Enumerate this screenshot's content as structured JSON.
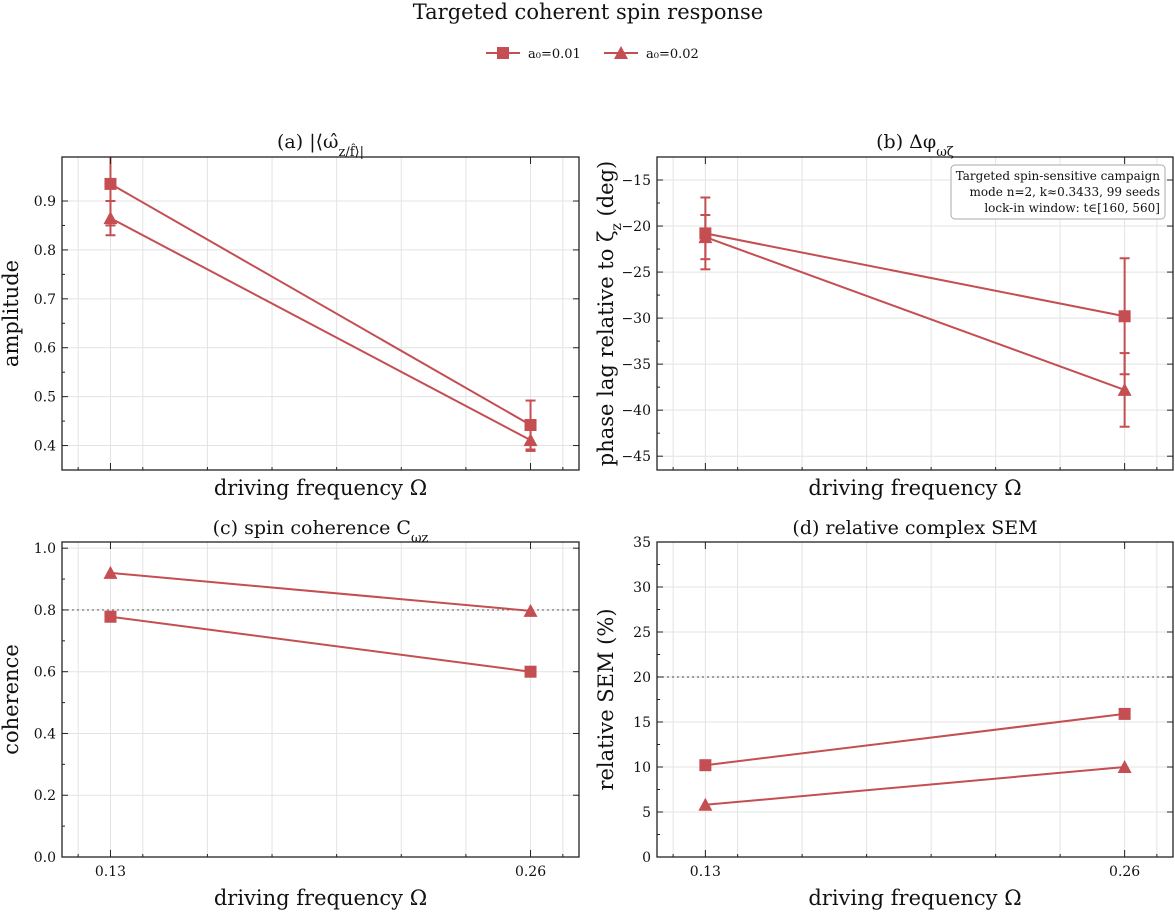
{
  "figure": {
    "suptitle": "Targeted coherent spin response",
    "legend": {
      "placement": "top-center",
      "entries": [
        {
          "label": "a₀=0.01",
          "marker": "square"
        },
        {
          "label": "a₀=0.02",
          "marker": "triangle"
        }
      ]
    },
    "color": "#c44e52"
  },
  "chart_data": [
    {
      "panel": "a",
      "type": "line",
      "title": "(a) |⟨ω̂_z/f̂⟩|",
      "xlabel": "driving frequency Ω",
      "ylabel": "amplitude",
      "xlim": [
        0.115,
        0.275
      ],
      "ylim": [
        0.35,
        0.99
      ],
      "yticks": [
        0.4,
        0.5,
        0.6,
        0.7,
        0.8,
        0.9
      ],
      "show_xticklabels": false,
      "x": [
        0.13,
        0.26
      ],
      "series": [
        {
          "name": "a₀=0.01",
          "marker": "square",
          "values": [
            0.935,
            0.442
          ],
          "err": [
            0.085,
            0.05
          ]
        },
        {
          "name": "a₀=0.02",
          "marker": "triangle",
          "values": [
            0.865,
            0.411
          ],
          "err": [
            0.035,
            0.022
          ]
        }
      ]
    },
    {
      "panel": "b",
      "type": "line",
      "title": "(b) Δφ_ωζ",
      "xlabel": "driving frequency Ω",
      "ylabel": "phase lag relative to ζ_z (deg)",
      "xlim": [
        0.115,
        0.275
      ],
      "ylim": [
        -46.5,
        -12.5
      ],
      "yticks": [
        -45,
        -40,
        -35,
        -30,
        -25,
        -20,
        -15
      ],
      "show_xticklabels": false,
      "annotation": {
        "placement": "top-right",
        "lines": [
          "Targeted spin-sensitive campaign",
          "mode n=2, k≈0.3433, 99 seeds",
          "lock-in window: t∈[160, 560]"
        ]
      },
      "x": [
        0.13,
        0.26
      ],
      "series": [
        {
          "name": "a₀=0.01",
          "marker": "square",
          "values": [
            -20.8,
            -29.8
          ],
          "err": [
            3.9,
            6.3
          ]
        },
        {
          "name": "a₀=0.02",
          "marker": "triangle",
          "values": [
            -21.2,
            -37.8
          ],
          "err": [
            2.4,
            4.0
          ]
        }
      ]
    },
    {
      "panel": "c",
      "type": "line",
      "title": "(c) spin coherence C_ωz",
      "xlabel": "driving frequency Ω",
      "ylabel": "coherence",
      "xlim": [
        0.115,
        0.275
      ],
      "ylim": [
        0.0,
        1.02
      ],
      "yticks": [
        0.0,
        0.2,
        0.4,
        0.6,
        0.8,
        1.0
      ],
      "xticks": [
        "0.13",
        "0.26"
      ],
      "show_xticklabels": true,
      "reference_line": 0.8,
      "x": [
        0.13,
        0.26
      ],
      "series": [
        {
          "name": "a₀=0.01",
          "marker": "square",
          "values": [
            0.778,
            0.6
          ]
        },
        {
          "name": "a₀=0.02",
          "marker": "triangle",
          "values": [
            0.92,
            0.797
          ]
        }
      ]
    },
    {
      "panel": "d",
      "type": "line",
      "title": "(d) relative complex SEM",
      "xlabel": "driving frequency Ω",
      "ylabel": "relative SEM (%)",
      "xlim": [
        0.115,
        0.275
      ],
      "ylim": [
        0,
        35
      ],
      "yticks": [
        0,
        5,
        10,
        15,
        20,
        25,
        30,
        35
      ],
      "xticks": [
        "0.13",
        "0.26"
      ],
      "show_xticklabels": true,
      "reference_line": 20,
      "x": [
        0.13,
        0.26
      ],
      "series": [
        {
          "name": "a₀=0.01",
          "marker": "square",
          "values": [
            10.2,
            15.9
          ]
        },
        {
          "name": "a₀=0.02",
          "marker": "triangle",
          "values": [
            5.8,
            10.0
          ]
        }
      ]
    }
  ]
}
